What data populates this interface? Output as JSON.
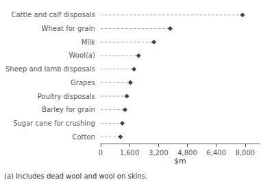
{
  "chart_data": {
    "type": "lollipop",
    "orientation": "horizontal",
    "categories": [
      "Cotton",
      "Sugar cane for crushing",
      "Barley for grain",
      "Poultry disposals",
      "Grapes",
      "Sheep and lamb disposals",
      "Wool(a)",
      "Milk",
      "Wheat for grain",
      "Cattle and calf disposals"
    ],
    "values": [
      1100,
      1200,
      1350,
      1450,
      1650,
      1850,
      2100,
      2950,
      3850,
      7850
    ],
    "xlim": [
      0,
      8800
    ],
    "xticks": [
      0,
      1600,
      3200,
      4800,
      6400,
      8000
    ],
    "xlabel": "$m",
    "annotation": "(a) Includes dead wool and wool on skins.",
    "color": "#111111",
    "marker": "diamond",
    "line_style": "dashed",
    "grid": false
  }
}
